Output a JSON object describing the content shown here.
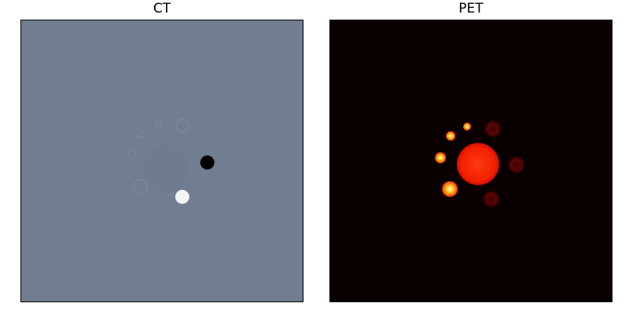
{
  "panels": {
    "ct": {
      "title": "CT",
      "background_color": "#717d90"
    },
    "pet": {
      "title": "PET",
      "background_color": "#0b0000"
    }
  }
}
